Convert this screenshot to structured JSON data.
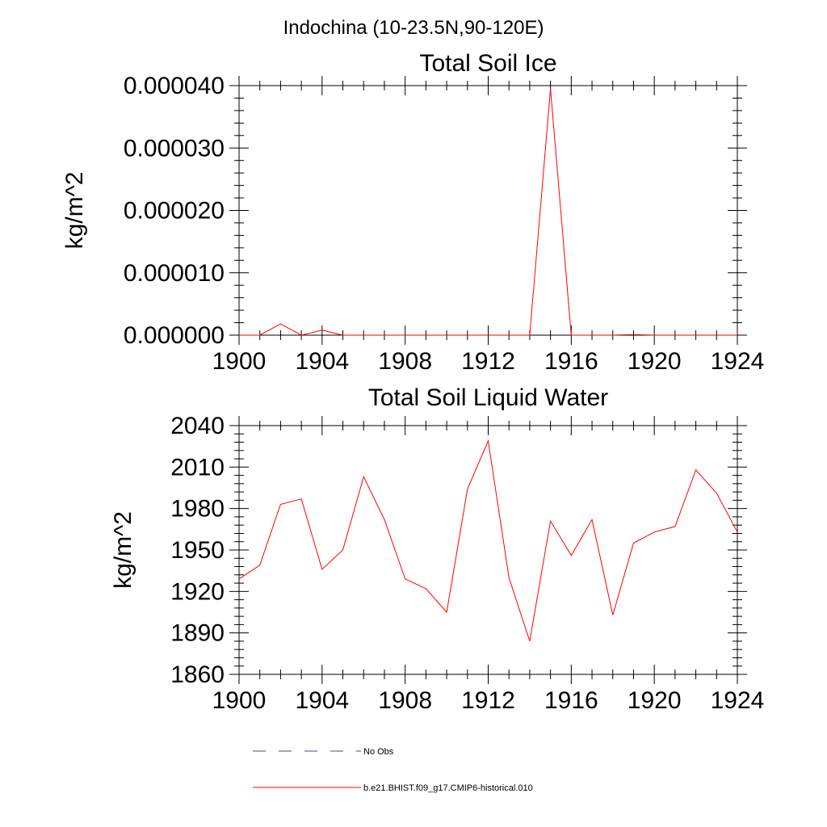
{
  "figure_title": "Indochina (10-23.5N,90-120E)",
  "colors": {
    "model": "#ff0000",
    "obs": "#4a4a7a",
    "axis": "#000000"
  },
  "legend": [
    {
      "label": "No Obs",
      "style": "dashed",
      "color": "#4a4a7a"
    },
    {
      "label": "b.e21.BHIST.f09_g17.CMIP6-historical.010",
      "style": "solid",
      "color": "#ff0000"
    }
  ],
  "chart_data": [
    {
      "type": "line",
      "title": "Total Soil Ice",
      "xlabel": "",
      "ylabel": "kg/m^2",
      "xlim": [
        1900,
        1924
      ],
      "ylim": [
        0,
        4e-05
      ],
      "xticks": [
        1900,
        1904,
        1908,
        1912,
        1916,
        1920,
        1924
      ],
      "yticks": [
        0,
        1e-05,
        2e-05,
        3e-05,
        4e-05
      ],
      "ytick_labels": [
        "0.000000",
        "0.000010",
        "0.000020",
        "0.000030",
        "0.000040"
      ],
      "x": [
        1900,
        1901,
        1902,
        1903,
        1904,
        1905,
        1906,
        1907,
        1908,
        1909,
        1910,
        1911,
        1912,
        1913,
        1914,
        1915,
        1916,
        1917,
        1918,
        1919,
        1920,
        1921,
        1922,
        1923,
        1924
      ],
      "series": [
        {
          "name": "b.e21.BHIST.f09_g17.CMIP6-historical.010",
          "values": [
            0,
            0,
            1.8e-06,
            0,
            8e-07,
            0,
            0,
            0,
            0,
            0,
            0,
            0,
            0,
            0,
            0,
            3.95e-05,
            0,
            0,
            0,
            1e-07,
            0,
            0,
            0,
            0,
            0
          ]
        }
      ]
    },
    {
      "type": "line",
      "title": "Total Soil Liquid Water",
      "xlabel": "",
      "ylabel": "kg/m^2",
      "xlim": [
        1900,
        1924
      ],
      "ylim": [
        1860,
        2040
      ],
      "xticks": [
        1900,
        1904,
        1908,
        1912,
        1916,
        1920,
        1924
      ],
      "yticks": [
        1860,
        1890,
        1920,
        1950,
        1980,
        2010,
        2040
      ],
      "ytick_labels": [
        "1860",
        "1890",
        "1920",
        "1950",
        "1980",
        "2010",
        "2040"
      ],
      "x": [
        1900,
        1901,
        1902,
        1903,
        1904,
        1905,
        1906,
        1907,
        1908,
        1909,
        1910,
        1911,
        1912,
        1913,
        1914,
        1915,
        1916,
        1917,
        1918,
        1919,
        1920,
        1921,
        1922,
        1923,
        1924
      ],
      "series": [
        {
          "name": "b.e21.BHIST.f09_g17.CMIP6-historical.010",
          "values": [
            1929,
            1939,
            1983,
            1987,
            1936,
            1950,
            2003,
            1972,
            1929,
            1922,
            1905,
            1994,
            2029,
            1930,
            1884,
            1971,
            1946,
            1972,
            1903,
            1955,
            1963,
            1967,
            2008,
            1991,
            1963
          ]
        }
      ]
    }
  ]
}
